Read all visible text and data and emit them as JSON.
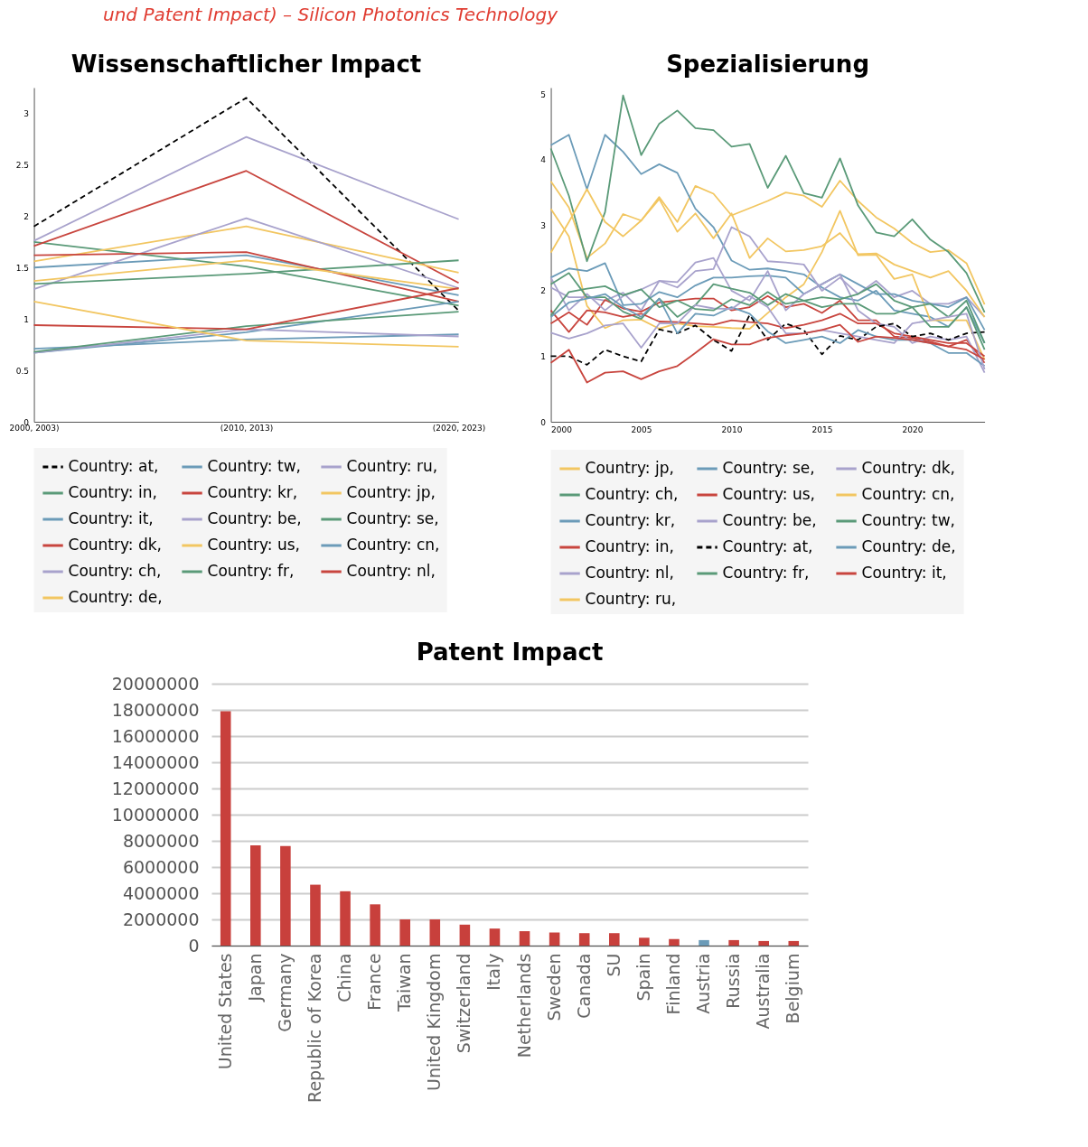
{
  "chart_data": [
    {
      "type": "line",
      "title": "Wissenschaftlicher Impact",
      "annotations": [
        "und Patent Impact) – Silicon Photonics Technology"
      ],
      "categories": [
        "2000, 2003)",
        "(2010, 2013)",
        "(2020, 2023)"
      ],
      "ylim": [
        0,
        3.25
      ],
      "yticks": [
        0,
        0.5,
        1,
        1.5,
        2,
        2.5,
        3
      ],
      "grid": false,
      "legend": "bottom",
      "series": [
        {
          "name": "Country: at,",
          "color": "#000000",
          "line_style": "dashed",
          "values": [
            1.9,
            3.15,
            1.08
          ]
        },
        {
          "name": "Country: tw,",
          "color": "#6b9bb8",
          "values": [
            1.5,
            1.62,
            1.23
          ]
        },
        {
          "name": "Country: ru,",
          "color": "#a8a2cc",
          "values": [
            1.76,
            2.77,
            1.97
          ]
        },
        {
          "name": "Country: in,",
          "color": "#5a9a78",
          "values": [
            1.75,
            1.51,
            1.13
          ]
        },
        {
          "name": "Country: kr,",
          "color": "#c8453e",
          "values": [
            1.71,
            2.44,
            1.35
          ]
        },
        {
          "name": "Country: jp,",
          "color": "#f2c661",
          "values": [
            1.56,
            1.9,
            1.45
          ]
        },
        {
          "name": "Country: it,",
          "color": "#6b9bb8",
          "values": [
            0.71,
            0.8,
            0.85
          ]
        },
        {
          "name": "Country: be,",
          "color": "#a8a2cc",
          "values": [
            1.29,
            1.98,
            1.3
          ]
        },
        {
          "name": "Country: se,",
          "color": "#5a9a78",
          "values": [
            1.34,
            1.44,
            1.57
          ]
        },
        {
          "name": "Country: dk,",
          "color": "#c8453e",
          "values": [
            1.62,
            1.65,
            1.17
          ]
        },
        {
          "name": "Country: us,",
          "color": "#f2c661",
          "values": [
            1.37,
            1.57,
            1.29
          ]
        },
        {
          "name": "Country: cn,",
          "color": "#6b9bb8",
          "values": [
            0.67,
            0.87,
            1.17
          ]
        },
        {
          "name": "Country: ch,",
          "color": "#a8a2cc",
          "values": [
            0.67,
            0.9,
            0.83
          ]
        },
        {
          "name": "Country: fr,",
          "color": "#5a9a78",
          "values": [
            0.68,
            0.93,
            1.07
          ]
        },
        {
          "name": "Country: nl,",
          "color": "#c8453e",
          "values": [
            0.94,
            0.9,
            1.3
          ]
        },
        {
          "name": "Country: de,",
          "color": "#f2c661",
          "values": [
            1.17,
            0.79,
            0.73
          ]
        }
      ]
    },
    {
      "type": "line",
      "title": "Spezialisierung",
      "x": [
        2000,
        2001,
        2002,
        2003,
        2004,
        2005,
        2006,
        2007,
        2008,
        2009,
        2010,
        2011,
        2012,
        2013,
        2014,
        2015,
        2016,
        2017,
        2018,
        2019,
        2020,
        2021,
        2022,
        2023,
        2024
      ],
      "xlim": [
        2000,
        2024
      ],
      "xticks": [
        2000,
        2005,
        2010,
        2015,
        2020
      ],
      "ylim": [
        0,
        5.1
      ],
      "yticks": [
        0,
        1,
        2,
        3,
        4,
        5
      ],
      "grid": false,
      "legend": "bottom",
      "series": [
        {
          "name": "Country: jp,",
          "color": "#f2c661",
          "values": [
            3.67,
            3.27,
            2.5,
            2.72,
            3.17,
            3.07,
            3.43,
            3.05,
            3.6,
            3.48,
            3.15,
            3.26,
            3.37,
            3.5,
            3.45,
            3.28,
            3.68,
            3.37,
            3.12,
            2.95,
            2.73,
            2.59,
            2.62,
            2.42,
            1.79
          ]
        },
        {
          "name": "Country: se,",
          "color": "#6b9bb8",
          "values": [
            4.22,
            4.38,
            3.55,
            4.38,
            4.12,
            3.78,
            3.93,
            3.8,
            3.25,
            2.97,
            2.46,
            2.32,
            2.34,
            2.3,
            2.25,
            2.05,
            1.9,
            1.85,
            2.0,
            1.7,
            1.65,
            1.6,
            1.45,
            1.75,
            1.2
          ]
        },
        {
          "name": "Country: dk,",
          "color": "#a8a2cc",
          "values": [
            2.05,
            1.9,
            1.9,
            1.85,
            1.97,
            1.7,
            2.15,
            2.05,
            2.3,
            2.33,
            2.97,
            2.83,
            2.45,
            2.43,
            2.4,
            2.0,
            2.2,
            1.95,
            2.15,
            1.9,
            2.0,
            1.8,
            1.8,
            1.9,
            1.6
          ]
        },
        {
          "name": "Country: ch,",
          "color": "#5a9a78",
          "values": [
            4.17,
            3.45,
            2.45,
            3.2,
            4.98,
            4.07,
            4.55,
            4.75,
            4.48,
            4.45,
            4.2,
            4.24,
            3.57,
            4.06,
            3.49,
            3.42,
            4.02,
            3.3,
            2.89,
            2.83,
            3.09,
            2.78,
            2.59,
            2.27,
            1.67
          ]
        },
        {
          "name": "Country: us,",
          "color": "#c8453e",
          "values": [
            1.5,
            1.67,
            1.48,
            1.86,
            1.73,
            1.68,
            1.82,
            1.85,
            1.88,
            1.88,
            1.7,
            1.75,
            1.92,
            1.75,
            1.8,
            1.66,
            1.85,
            1.55,
            1.55,
            1.3,
            1.28,
            1.22,
            1.15,
            1.25,
            0.9
          ]
        },
        {
          "name": "Country: cn,",
          "color": "#f2c661",
          "values": [
            3.25,
            2.83,
            1.77,
            1.43,
            1.55,
            1.56,
            1.42,
            1.5,
            1.46,
            1.45,
            1.43,
            1.42,
            1.66,
            1.9,
            2.1,
            2.59,
            3.22,
            2.54,
            2.55,
            2.18,
            2.25,
            1.55,
            1.55,
            1.55,
            0.95
          ]
        },
        {
          "name": "Country: kr,",
          "color": "#6b9bb8",
          "values": [
            2.2,
            2.34,
            2.3,
            2.42,
            1.78,
            1.8,
            1.98,
            1.9,
            2.08,
            2.2,
            2.2,
            2.22,
            2.23,
            2.2,
            1.95,
            2.1,
            2.25,
            2.1,
            1.95,
            1.95,
            1.85,
            1.8,
            1.75,
            1.9,
            1.4
          ]
        },
        {
          "name": "Country: be,",
          "color": "#a8a2cc",
          "values": [
            2.2,
            1.7,
            1.95,
            1.7,
            1.92,
            2.02,
            2.15,
            2.13,
            2.43,
            2.5,
            2.0,
            1.85,
            2.3,
            1.7,
            1.95,
            2.1,
            2.25,
            1.7,
            1.5,
            1.45,
            1.2,
            1.3,
            1.25,
            1.3,
            0.75
          ]
        },
        {
          "name": "Country: tw,",
          "color": "#5a9a78",
          "values": [
            2.1,
            2.27,
            1.9,
            1.9,
            1.68,
            1.57,
            1.88,
            1.6,
            1.78,
            2.1,
            2.03,
            1.97,
            1.78,
            1.95,
            1.85,
            1.9,
            1.87,
            1.95,
            2.1,
            1.85,
            1.75,
            1.8,
            1.6,
            1.85,
            1.2
          ]
        },
        {
          "name": "Country: in,",
          "color": "#c8453e",
          "values": [
            1.7,
            1.37,
            1.7,
            1.67,
            1.6,
            1.65,
            1.53,
            1.52,
            1.5,
            1.48,
            1.55,
            1.52,
            1.5,
            1.43,
            1.48,
            1.55,
            1.65,
            1.5,
            1.5,
            1.35,
            1.3,
            1.25,
            1.2,
            1.2,
            1.0
          ]
        },
        {
          "name": "Country: at,",
          "color": "#000000",
          "line_style": "dashed",
          "values": [
            1.0,
            1.0,
            0.87,
            1.1,
            1.0,
            0.92,
            1.41,
            1.35,
            1.47,
            1.25,
            1.08,
            1.63,
            1.25,
            1.5,
            1.4,
            1.03,
            1.31,
            1.25,
            1.45,
            1.5,
            1.3,
            1.35,
            1.25,
            1.35,
            1.37
          ]
        },
        {
          "name": "Country: de,",
          "color": "#6b9bb8",
          "values": [
            1.6,
            1.82,
            1.88,
            1.95,
            1.75,
            1.6,
            1.88,
            1.35,
            1.65,
            1.62,
            1.75,
            1.65,
            1.38,
            1.2,
            1.25,
            1.3,
            1.2,
            1.4,
            1.3,
            1.25,
            1.25,
            1.2,
            1.05,
            1.05,
            0.85
          ]
        },
        {
          "name": "Country: nl,",
          "color": "#a8a2cc",
          "values": [
            1.36,
            1.27,
            1.35,
            1.47,
            1.5,
            1.13,
            1.5,
            1.5,
            1.78,
            1.73,
            1.72,
            1.92,
            1.75,
            1.35,
            1.35,
            1.4,
            1.35,
            1.3,
            1.25,
            1.2,
            1.5,
            1.55,
            1.6,
            1.65,
            0.8
          ]
        },
        {
          "name": "Country: fr,",
          "color": "#5a9a78",
          "values": [
            1.62,
            1.98,
            2.03,
            2.07,
            1.93,
            2.02,
            1.75,
            1.85,
            1.72,
            1.7,
            1.87,
            1.78,
            1.98,
            1.8,
            1.85,
            1.75,
            1.8,
            1.8,
            1.65,
            1.65,
            1.75,
            1.45,
            1.45,
            1.75,
            1.1
          ]
        },
        {
          "name": "Country: it,",
          "color": "#c8453e",
          "values": [
            0.9,
            1.1,
            0.6,
            0.75,
            0.77,
            0.65,
            0.77,
            0.85,
            1.05,
            1.26,
            1.18,
            1.18,
            1.28,
            1.32,
            1.35,
            1.4,
            1.48,
            1.22,
            1.3,
            1.28,
            1.25,
            1.2,
            1.15,
            1.1,
            0.95
          ]
        },
        {
          "name": "Country: ru,",
          "color": "#f2c661",
          "values": [
            2.58,
            3.05,
            3.55,
            3.05,
            2.83,
            3.07,
            3.4,
            2.9,
            3.18,
            2.8,
            3.18,
            2.5,
            2.8,
            2.6,
            2.62,
            2.68,
            2.88,
            2.56,
            2.57,
            2.4,
            2.3,
            2.2,
            2.3,
            2.0,
            1.6
          ]
        }
      ]
    },
    {
      "type": "bar",
      "title": "Patent Impact",
      "categories": [
        "United States",
        "Japan",
        "Germany",
        "Republic of Korea",
        "China",
        "France",
        "Taiwan",
        "United Kingdom",
        "Switzerland",
        "Italy",
        "Netherlands",
        "Sweden",
        "Canada",
        "SU",
        "Spain",
        "Finland",
        "Austria",
        "Russia",
        "Australia",
        "Belgium"
      ],
      "values": [
        17900000,
        7650000,
        7600000,
        4650000,
        4150000,
        3150000,
        2000000,
        2000000,
        1600000,
        1300000,
        1100000,
        1000000,
        950000,
        950000,
        600000,
        500000,
        420000,
        420000,
        350000,
        350000
      ],
      "colors": [
        "#c8403c",
        "#c8403c",
        "#c8403c",
        "#c8403c",
        "#c8403c",
        "#c8403c",
        "#c8403c",
        "#c8403c",
        "#c8403c",
        "#c8403c",
        "#c8403c",
        "#c8403c",
        "#c8403c",
        "#c8403c",
        "#c8403c",
        "#c8403c",
        "#6b9bb8",
        "#c8403c",
        "#c8403c",
        "#c8403c"
      ],
      "ylim": [
        0,
        20000000
      ],
      "yticks": [
        0,
        2000000,
        4000000,
        6000000,
        8000000,
        10000000,
        12000000,
        14000000,
        16000000,
        18000000,
        20000000
      ],
      "grid": "y",
      "legend": false
    }
  ]
}
